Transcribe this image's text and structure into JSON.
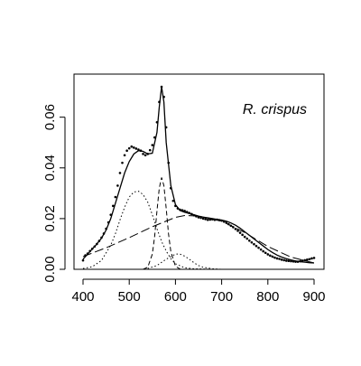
{
  "chart_data": {
    "type": "scatter",
    "title": "",
    "xlabel": "",
    "ylabel": "",
    "xlim": [
      400,
      900
    ],
    "ylim": [
      0,
      0.072
    ],
    "x_ticks": [
      400,
      500,
      600,
      700,
      800,
      900
    ],
    "y_ticks": [
      0.0,
      0.02,
      0.04,
      0.06
    ],
    "x_tick_labels": [
      "400",
      "500",
      "600",
      "700",
      "800",
      "900"
    ],
    "y_tick_labels": [
      "0.00",
      "0.02",
      "0.04",
      "0.06"
    ],
    "grid": false,
    "legend": null,
    "annotation": {
      "text": "R. crispus",
      "position": "top-right"
    },
    "observed": {
      "x": [
        400,
        405,
        410,
        415,
        420,
        425,
        430,
        435,
        440,
        445,
        450,
        455,
        460,
        465,
        470,
        475,
        480,
        485,
        490,
        495,
        500,
        505,
        510,
        515,
        520,
        525,
        530,
        535,
        540,
        545,
        550,
        555,
        560,
        565,
        570,
        575,
        580,
        585,
        590,
        595,
        600,
        605,
        610,
        615,
        620,
        625,
        630,
        635,
        640,
        645,
        650,
        655,
        660,
        665,
        670,
        675,
        680,
        685,
        690,
        695,
        700,
        705,
        710,
        715,
        720,
        725,
        730,
        735,
        740,
        745,
        750,
        755,
        760,
        765,
        770,
        775,
        780,
        785,
        790,
        795,
        800,
        805,
        810,
        815,
        820,
        825,
        830,
        835,
        840,
        845,
        850,
        855,
        860,
        865,
        870,
        875,
        880,
        885,
        890,
        895,
        900
      ],
      "y": [
        0.0035,
        0.0055,
        0.0062,
        0.0072,
        0.0081,
        0.009,
        0.01,
        0.0112,
        0.0125,
        0.0141,
        0.016,
        0.0185,
        0.0215,
        0.025,
        0.0285,
        0.033,
        0.038,
        0.042,
        0.045,
        0.0468,
        0.0477,
        0.0484,
        0.048,
        0.0476,
        0.0472,
        0.0468,
        0.0455,
        0.045,
        0.0455,
        0.047,
        0.049,
        0.052,
        0.058,
        0.066,
        0.072,
        0.068,
        0.056,
        0.042,
        0.032,
        0.027,
        0.025,
        0.024,
        0.0235,
        0.0233,
        0.023,
        0.0226,
        0.0222,
        0.0218,
        0.0213,
        0.0209,
        0.0205,
        0.0203,
        0.02,
        0.0198,
        0.0195,
        0.0196,
        0.0197,
        0.0195,
        0.0196,
        0.0194,
        0.0192,
        0.0188,
        0.0184,
        0.0178,
        0.0172,
        0.0166,
        0.0159,
        0.0152,
        0.0144,
        0.0136,
        0.0128,
        0.0121,
        0.0113,
        0.0106,
        0.0099,
        0.0092,
        0.0085,
        0.0078,
        0.0071,
        0.0065,
        0.0059,
        0.0054,
        0.005,
        0.0046,
        0.0043,
        0.0041,
        0.0038,
        0.0036,
        0.0034,
        0.0033,
        0.0032,
        0.0031,
        0.003,
        0.003,
        0.0032,
        0.0034,
        0.0036,
        0.0038,
        0.004,
        0.0043,
        0.0045
      ]
    },
    "fitted": {
      "x": [
        400,
        410,
        420,
        430,
        440,
        450,
        460,
        470,
        480,
        490,
        500,
        510,
        520,
        530,
        540,
        550,
        560,
        565,
        570,
        575,
        580,
        590,
        600,
        610,
        620,
        630,
        640,
        650,
        660,
        670,
        680,
        690,
        700,
        710,
        720,
        730,
        740,
        750,
        760,
        770,
        780,
        790,
        800,
        810,
        820,
        830,
        840,
        850,
        860,
        870,
        880,
        890,
        900
      ],
      "y": [
        0.004,
        0.006,
        0.008,
        0.01,
        0.0123,
        0.0155,
        0.02,
        0.026,
        0.032,
        0.038,
        0.0425,
        0.0455,
        0.0468,
        0.0465,
        0.0455,
        0.0458,
        0.054,
        0.064,
        0.072,
        0.066,
        0.05,
        0.033,
        0.0255,
        0.0232,
        0.0225,
        0.022,
        0.0215,
        0.021,
        0.0206,
        0.0203,
        0.02,
        0.0197,
        0.0194,
        0.019,
        0.0183,
        0.0174,
        0.0162,
        0.0148,
        0.0134,
        0.012,
        0.0106,
        0.0092,
        0.0078,
        0.0066,
        0.0056,
        0.0048,
        0.0042,
        0.0037,
        0.0033,
        0.003,
        0.0028,
        0.0026,
        0.0025
      ]
    },
    "components": [
      {
        "style": "dotted",
        "x": [
          400,
          420,
          440,
          460,
          470,
          480,
          490,
          500,
          510,
          520,
          530,
          540,
          550,
          560,
          570,
          580,
          590,
          600,
          620,
          640,
          660,
          680,
          700
        ],
        "y": [
          0.0003,
          0.001,
          0.0035,
          0.0095,
          0.014,
          0.0195,
          0.0245,
          0.0285,
          0.0305,
          0.0308,
          0.0295,
          0.0265,
          0.0215,
          0.016,
          0.011,
          0.0072,
          0.0042,
          0.0022,
          0.0006,
          0.0002,
          0.0001,
          0.0,
          0.0
        ]
      },
      {
        "style": "dashed",
        "x": [
          530,
          540,
          550,
          555,
          560,
          565,
          570,
          575,
          580,
          585,
          590,
          600,
          610
        ],
        "y": [
          0.0,
          0.0008,
          0.006,
          0.013,
          0.023,
          0.032,
          0.0362,
          0.033,
          0.024,
          0.014,
          0.007,
          0.0012,
          0.0001
        ]
      },
      {
        "style": "long-dashed",
        "x": [
          400,
          450,
          500,
          550,
          600,
          620,
          650,
          700,
          750,
          800,
          850,
          900
        ],
        "y": [
          0.005,
          0.0085,
          0.0125,
          0.0168,
          0.0205,
          0.0212,
          0.021,
          0.019,
          0.0145,
          0.009,
          0.0048,
          0.0025
        ]
      },
      {
        "style": "dotted",
        "x": [
          540,
          560,
          580,
          600,
          610,
          620,
          630,
          640,
          650,
          660,
          680,
          700
        ],
        "y": [
          0.0003,
          0.0015,
          0.004,
          0.006,
          0.006,
          0.0052,
          0.004,
          0.0026,
          0.0015,
          0.0008,
          0.0002,
          0.0
        ]
      }
    ]
  }
}
